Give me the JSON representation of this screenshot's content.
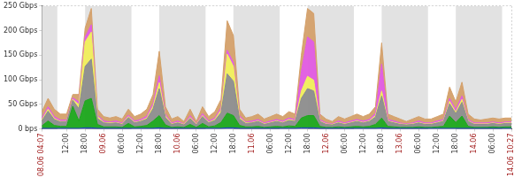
{
  "chart_data": {
    "type": "area",
    "stacked": true,
    "grid": true,
    "categories": [
      "08.06 04:07",
      null,
      null,
      null,
      "12:00",
      null,
      null,
      "18:00",
      null,
      null,
      "09.06",
      null,
      null,
      "06:00",
      null,
      null,
      "12:00",
      null,
      null,
      "18:00",
      null,
      null,
      "10.06",
      null,
      null,
      "06:00",
      null,
      null,
      "12:00",
      null,
      null,
      "18:00",
      null,
      null,
      "11.06",
      null,
      null,
      "06:00",
      null,
      null,
      "12:00",
      null,
      null,
      "18:00",
      null,
      null,
      "12.06",
      null,
      null,
      "06:00",
      null,
      null,
      "12:00",
      null,
      null,
      "18:00",
      null,
      null,
      "13.06",
      null,
      null,
      "06:00",
      null,
      null,
      "12:00",
      null,
      null,
      "18:00",
      null,
      null,
      "14.06",
      null,
      null,
      "06:00",
      null,
      null,
      "14.06 10:27"
    ],
    "series": [
      {
        "color": "#1a3cc8",
        "values": [
          1,
          1,
          1,
          1,
          1,
          1,
          1,
          2,
          2,
          1,
          1,
          1,
          1,
          1,
          1,
          1,
          1,
          1,
          1,
          2,
          1,
          1,
          1,
          1,
          1,
          1,
          1,
          1,
          1,
          1,
          2,
          2,
          1,
          1,
          1,
          1,
          1,
          1,
          1,
          1,
          1,
          1,
          2,
          2,
          2,
          1,
          1,
          1,
          1,
          1,
          1,
          1,
          1,
          1,
          1,
          2,
          1,
          1,
          1,
          1,
          1,
          1,
          1,
          1,
          1,
          1,
          1,
          1,
          1,
          1,
          1,
          1,
          1,
          1,
          1,
          1,
          1
        ]
      },
      {
        "color": "#1aa51a",
        "values": [
          5,
          15,
          6,
          4,
          4,
          45,
          15,
          55,
          60,
          8,
          3,
          3,
          3,
          2,
          10,
          3,
          4,
          6,
          15,
          25,
          7,
          2,
          3,
          2,
          8,
          2,
          10,
          3,
          5,
          12,
          30,
          25,
          6,
          3,
          3,
          4,
          2,
          3,
          4,
          3,
          5,
          4,
          20,
          25,
          25,
          4,
          2,
          2,
          3,
          2,
          3,
          4,
          3,
          4,
          8,
          20,
          4,
          3,
          2,
          2,
          2,
          3,
          2,
          2,
          3,
          4,
          25,
          12,
          25,
          4,
          2,
          2,
          2,
          3,
          2,
          3,
          3
        ]
      },
      {
        "color": "#8c8c8c",
        "values": [
          10,
          20,
          12,
          9,
          9,
          12,
          25,
          70,
          80,
          12,
          8,
          7,
          8,
          6,
          12,
          8,
          10,
          13,
          25,
          55,
          15,
          6,
          8,
          5,
          12,
          5,
          14,
          8,
          11,
          20,
          80,
          70,
          13,
          7,
          8,
          10,
          6,
          8,
          10,
          8,
          11,
          10,
          40,
          55,
          50,
          10,
          6,
          5,
          8,
          6,
          8,
          10,
          8,
          10,
          15,
          45,
          10,
          8,
          6,
          5,
          6,
          8,
          6,
          6,
          8,
          10,
          25,
          18,
          28,
          10,
          6,
          6,
          6,
          7,
          6,
          7,
          7
        ]
      },
      {
        "color": "#f0ee5a",
        "values": [
          2,
          4,
          2,
          1,
          1,
          2,
          8,
          50,
          55,
          4,
          1,
          1,
          1,
          1,
          2,
          1,
          1,
          2,
          5,
          12,
          3,
          1,
          1,
          1,
          2,
          1,
          2,
          1,
          2,
          5,
          40,
          30,
          3,
          1,
          1,
          1,
          1,
          1,
          1,
          1,
          2,
          1,
          15,
          25,
          22,
          1,
          1,
          1,
          1,
          1,
          1,
          1,
          1,
          1,
          3,
          10,
          1,
          1,
          1,
          1,
          1,
          1,
          1,
          1,
          1,
          1,
          5,
          3,
          6,
          1,
          1,
          1,
          1,
          1,
          1,
          1,
          1
        ]
      },
      {
        "color": "#e05ae0",
        "values": [
          4,
          5,
          4,
          3,
          3,
          3,
          6,
          10,
          15,
          3,
          3,
          2,
          3,
          2,
          3,
          3,
          3,
          4,
          6,
          14,
          4,
          2,
          3,
          1,
          4,
          1,
          4,
          3,
          3,
          5,
          8,
          8,
          4,
          2,
          3,
          3,
          2,
          3,
          3,
          3,
          3,
          3,
          40,
          80,
          78,
          3,
          2,
          1,
          3,
          2,
          3,
          3,
          3,
          3,
          5,
          55,
          3,
          3,
          2,
          1,
          2,
          3,
          2,
          2,
          3,
          3,
          6,
          5,
          7,
          3,
          2,
          2,
          2,
          2,
          2,
          2,
          2
        ]
      },
      {
        "color": "#d4a06a",
        "values": [
          13,
          17,
          15,
          12,
          12,
          7,
          15,
          18,
          33,
          12,
          9,
          8,
          9,
          8,
          12,
          9,
          11,
          14,
          18,
          50,
          15,
          8,
          9,
          5,
          13,
          5,
          14,
          9,
          13,
          17,
          60,
          55,
          13,
          8,
          9,
          11,
          8,
          9,
          11,
          9,
          13,
          11,
          33,
          58,
          58,
          11,
          8,
          5,
          9,
          8,
          9,
          11,
          9,
          11,
          13,
          43,
          11,
          9,
          8,
          5,
          8,
          9,
          8,
          8,
          9,
          11,
          23,
          16,
          28,
          11,
          8,
          6,
          8,
          8,
          8,
          8,
          8
        ]
      }
    ],
    "ylim": [
      0,
      250
    ],
    "yticks": [
      {
        "value": 0,
        "label": "0 bps"
      },
      {
        "value": 50,
        "label": "50 Gbps"
      },
      {
        "value": 100,
        "label": "100 Gbps"
      },
      {
        "value": 150,
        "label": "150 Gbps"
      },
      {
        "value": 200,
        "label": "200 Gbps"
      },
      {
        "value": 250,
        "label": "250 Gbps"
      }
    ]
  }
}
